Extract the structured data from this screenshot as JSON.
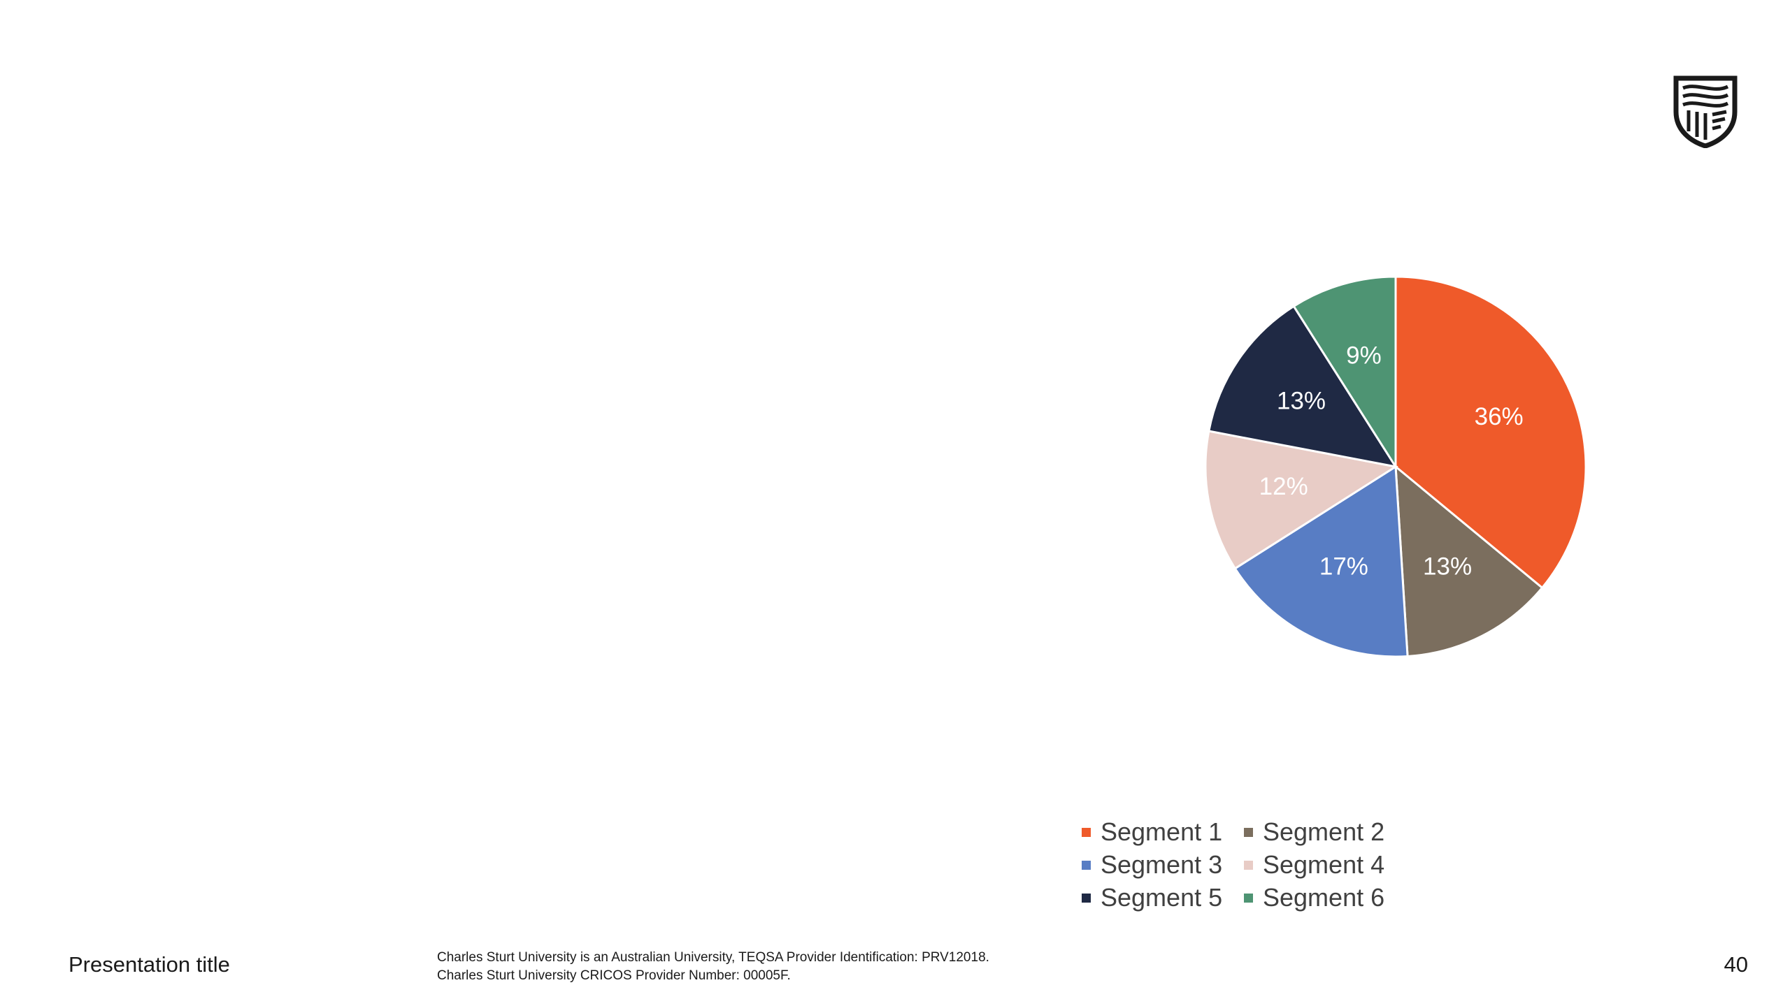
{
  "slide": {
    "presentation_title": "Presentation title",
    "legal_line_1": "Charles Sturt University is an Australian University, TEQSA Provider Identification: PRV12018.",
    "legal_line_2": "Charles Sturt University CRICOS Provider Number: 00005F.",
    "page_number": "40"
  },
  "logo": {
    "icon": "university-shield-icon",
    "color": "#1a1a1a"
  },
  "chart_data": {
    "type": "pie",
    "title": "",
    "legend_position": "bottom",
    "slices": [
      {
        "name": "Segment 1",
        "value": 36,
        "label": "36%",
        "color": "#ef5a2a"
      },
      {
        "name": "Segment 2",
        "value": 13,
        "label": "13%",
        "color": "#7b6e5e"
      },
      {
        "name": "Segment 3",
        "value": 17,
        "label": "17%",
        "color": "#587dc4"
      },
      {
        "name": "Segment 4",
        "value": 12,
        "label": "12%",
        "color": "#e8ccc6"
      },
      {
        "name": "Segment 5",
        "value": 13,
        "label": "13%",
        "color": "#1f2944"
      },
      {
        "name": "Segment 6",
        "value": 9,
        "label": "9%",
        "color": "#4e9473"
      }
    ]
  }
}
